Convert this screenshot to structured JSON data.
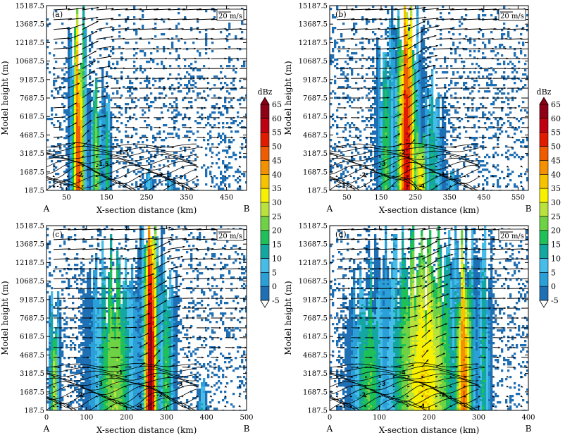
{
  "chart_data": {
    "type": "contourf-cross-section",
    "y_ticks": [
      187.5,
      1687.5,
      3187.5,
      4687.5,
      6187.5,
      7687.5,
      9187.5,
      10687.5,
      12187.5,
      13687.5,
      15187.5
    ],
    "ylabel": "Model height (m)",
    "xlabel": "X-section distance (km)",
    "vector_reference": "20 m/s",
    "colorbar": {
      "units": "dBz",
      "levels": [
        -5,
        0,
        5,
        10,
        15,
        20,
        25,
        30,
        35,
        40,
        45,
        50,
        55,
        60,
        65
      ],
      "colors": [
        "#1f6fb4",
        "#2a9fd8",
        "#46bde8",
        "#14a6a0",
        "#1fbf5a",
        "#6fd244",
        "#b9e23c",
        "#f7f000",
        "#f7c300",
        "#f59100",
        "#ef5b00",
        "#e01b00",
        "#bf0010",
        "#8e0016"
      ]
    },
    "panels": [
      {
        "label": "(a)",
        "xlim": [
          0,
          500
        ],
        "x_ticks": [
          50,
          150,
          250,
          350,
          450
        ],
        "start": "A",
        "end": "B",
        "contour_labels": [
          "-1",
          "-2",
          "-1.5",
          "-1.5",
          "-1",
          "-3"
        ],
        "cores": [
          {
            "x": 80,
            "zmax": 12500,
            "peak": 50,
            "width": 22
          },
          {
            "x": 125,
            "zmax": 8000,
            "peak": 25,
            "width": 18
          },
          {
            "x": 152,
            "zmax": 7300,
            "peak": 20,
            "width": 9
          },
          {
            "x": 255,
            "zmax": 1500,
            "peak": 8,
            "width": 14
          },
          {
            "x": 310,
            "zmax": 1300,
            "peak": 8,
            "width": 10
          }
        ]
      },
      {
        "label": "(b)",
        "xlim": [
          0,
          580
        ],
        "x_ticks": [
          50,
          150,
          250,
          350,
          450,
          550
        ],
        "start": "A",
        "end": "B",
        "contour_labels": [
          "-1",
          "-2",
          "-3",
          "-2",
          "-1",
          "-1"
        ],
        "cores": [
          {
            "x": 225,
            "zmax": 13800,
            "peak": 55,
            "width": 40
          },
          {
            "x": 165,
            "zmax": 11200,
            "peak": 20,
            "width": 30
          },
          {
            "x": 300,
            "zmax": 7700,
            "peak": 15,
            "width": 35
          },
          {
            "x": 265,
            "zmax": 4500,
            "peak": 35,
            "width": 30
          },
          {
            "x": 355,
            "zmax": 1600,
            "peak": 8,
            "width": 22
          }
        ]
      },
      {
        "label": "(c)",
        "xlim": [
          0,
          500
        ],
        "x_ticks": [
          0,
          100,
          200,
          300,
          400,
          500
        ],
        "start": "A",
        "end": "B",
        "contour_labels": [
          "-1",
          "-2",
          "-3",
          "-1",
          "-1",
          "-2",
          "-3"
        ],
        "cores": [
          {
            "x": 260,
            "zmax": 15000,
            "peak": 65,
            "width": 24
          },
          {
            "x": 170,
            "zmax": 11000,
            "peak": 25,
            "width": 70
          },
          {
            "x": 20,
            "zmax": 8000,
            "peak": 30,
            "width": 14
          },
          {
            "x": 300,
            "zmax": 10500,
            "peak": 20,
            "width": 24
          },
          {
            "x": 390,
            "zmax": 2300,
            "peak": 10,
            "width": 12
          }
        ]
      },
      {
        "label": "(d)",
        "xlim": [
          0,
          400
        ],
        "x_ticks": [
          0,
          100,
          200,
          300,
          400
        ],
        "start": "A",
        "end": "B",
        "contour_labels": [
          "-1",
          "-2",
          "-3",
          "-4",
          "-1",
          "-2"
        ],
        "cores": [
          {
            "x": 190,
            "zmax": 12500,
            "peak": 35,
            "width": 95
          },
          {
            "x": 270,
            "zmax": 11500,
            "peak": 45,
            "width": 26
          },
          {
            "x": 80,
            "zmax": 9500,
            "peak": 20,
            "width": 45
          },
          {
            "x": 310,
            "zmax": 12500,
            "peak": 15,
            "width": 16
          }
        ]
      }
    ]
  }
}
